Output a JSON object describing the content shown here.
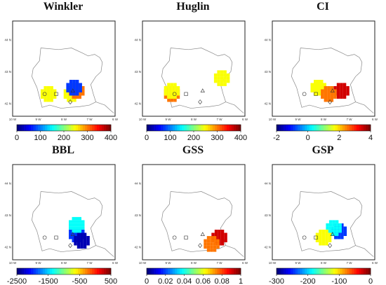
{
  "panels": [
    {
      "id": "winkler",
      "title": "Winkler",
      "ticks": [
        "0",
        "100",
        "200",
        "300",
        "400"
      ],
      "cmap": "jet",
      "points": [
        [
          "-7.7",
          "42.3",
          "yellow"
        ],
        [
          "-7.5",
          "42.4",
          "orange"
        ],
        [
          "-8.6",
          "42.3",
          "yellow"
        ],
        [
          "-7.6",
          "42.5",
          "blue"
        ]
      ]
    },
    {
      "id": "huglin",
      "title": "Huglin",
      "ticks": [
        "0",
        "100",
        "200",
        "300",
        "400"
      ],
      "cmap": "jet",
      "points": [
        [
          "-8.85",
          "42.3",
          "orange"
        ],
        [
          "-8.85",
          "42.4",
          "yellow"
        ],
        [
          "-6.9",
          "42.8",
          "yellow"
        ]
      ]
    },
    {
      "id": "ci",
      "title": "CI",
      "ticks": [
        "-2",
        "0",
        "2",
        "4"
      ],
      "cmap": "jet",
      "points": [
        [
          "-7.3",
          "42.4",
          "red"
        ],
        [
          "-8.2",
          "42.5",
          "yellow"
        ],
        [
          "-7.8",
          "42.3",
          "orange"
        ]
      ]
    },
    {
      "id": "bbl",
      "title": "BBL",
      "ticks": [
        "-2500",
        "-1500",
        "-500",
        "500"
      ],
      "cmap": "jet",
      "points": [
        [
          "-7.5",
          "42.4",
          "blue"
        ],
        [
          "-7.5",
          "42.7",
          "cyan"
        ],
        [
          "-7.3",
          "42.2",
          "navy"
        ]
      ]
    },
    {
      "id": "gss",
      "title": "GSS",
      "ticks": [
        "0",
        "0.02",
        "0.04",
        "0.06",
        "0.08",
        "1"
      ],
      "cmap": "jet",
      "points": [
        [
          "-7.0",
          "42.3",
          "red"
        ],
        [
          "-7.3",
          "42.1",
          "orange"
        ]
      ]
    },
    {
      "id": "gsp",
      "title": "GSP",
      "ticks": [
        "-300",
        "-200",
        "-100",
        "0"
      ],
      "cmap": "jet",
      "points": [
        [
          "-7.4",
          "42.5",
          "blue"
        ],
        [
          "-7.6",
          "42.6",
          "cyan"
        ],
        [
          "-8.0",
          "42.3",
          "yellow"
        ]
      ]
    }
  ],
  "map_axes": {
    "lon_labels": [
      "10 W",
      "9 W",
      "8 W",
      "7 W",
      "6 W"
    ],
    "lat_labels": [
      "44 N",
      "43 N",
      "42 N"
    ]
  },
  "colors": {
    "outline": "#222222",
    "coast": "#888888"
  }
}
